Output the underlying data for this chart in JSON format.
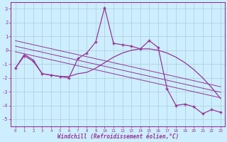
{
  "xlabel": "Windchill (Refroidissement éolien,°C)",
  "hours": [
    0,
    1,
    2,
    3,
    4,
    5,
    6,
    7,
    8,
    9,
    10,
    11,
    12,
    13,
    14,
    15,
    16,
    17,
    18,
    19,
    20,
    21,
    22,
    23
  ],
  "windchill_main": [
    -1.3,
    -0.4,
    -0.8,
    -1.7,
    -1.8,
    -1.9,
    -2.0,
    -0.6,
    -0.2,
    0.6,
    3.1,
    0.5,
    0.4,
    0.3,
    0.1,
    0.7,
    0.2,
    -2.8,
    -4.0,
    -3.9,
    -4.1,
    -4.6,
    -4.3,
    -4.5
  ],
  "windchill_smooth": [
    -1.3,
    -0.3,
    -0.7,
    -1.7,
    -1.8,
    -1.9,
    -1.9,
    -1.7,
    -1.6,
    -1.3,
    -0.9,
    -0.5,
    -0.2,
    0.0,
    0.1,
    0.1,
    0.0,
    -0.2,
    -0.5,
    -0.9,
    -1.4,
    -2.0,
    -2.7,
    -3.5
  ],
  "line_color": "#993399",
  "bg_color": "#cceeff",
  "grid_color": "#aaccdd",
  "ylim": [
    -5.5,
    3.5
  ],
  "xlim": [
    -0.5,
    23.5
  ],
  "yticks": [
    3,
    2,
    1,
    0,
    -1,
    -2,
    -3,
    -4,
    -5
  ],
  "xticks": [
    0,
    1,
    2,
    3,
    4,
    5,
    6,
    7,
    8,
    9,
    10,
    11,
    12,
    13,
    14,
    15,
    16,
    17,
    18,
    19,
    20,
    21,
    22,
    23
  ],
  "reg_offsets": [
    -0.4,
    0.0,
    0.4
  ]
}
